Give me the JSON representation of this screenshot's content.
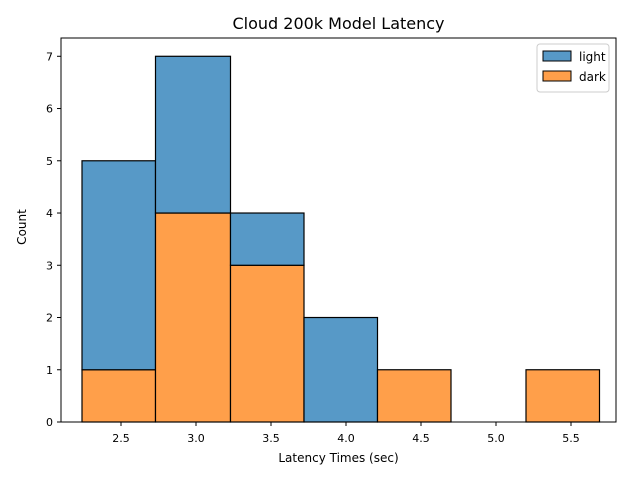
{
  "chart_data": {
    "type": "bar",
    "subtype": "stacked-histogram",
    "title": "Cloud 200k Model Latency",
    "xlabel": "Latency Times (sec)",
    "ylabel": "Count",
    "xlim": [
      2.1,
      5.8
    ],
    "ylim": [
      0,
      7.35
    ],
    "xticks": [
      2.5,
      3.0,
      3.5,
      4.0,
      4.5,
      5.0,
      5.5
    ],
    "yticks": [
      0,
      1,
      2,
      3,
      4,
      5,
      6,
      7
    ],
    "bins": [
      [
        2.24,
        2.73
      ],
      [
        2.73,
        3.23
      ],
      [
        3.23,
        3.72
      ],
      [
        3.72,
        4.21
      ],
      [
        4.21,
        4.7
      ],
      [
        4.7,
        5.2
      ],
      [
        5.2,
        5.69
      ]
    ],
    "series": [
      {
        "name": "dark",
        "color": "#ff9f4a",
        "values": [
          1,
          4,
          3,
          0,
          1,
          0,
          1
        ]
      },
      {
        "name": "light",
        "color": "#5799c7",
        "values": [
          4,
          3,
          1,
          2,
          0,
          0,
          0
        ]
      }
    ],
    "stacked": true,
    "legend": {
      "position": "top-right",
      "order": [
        "light",
        "dark"
      ]
    },
    "grid": false
  }
}
